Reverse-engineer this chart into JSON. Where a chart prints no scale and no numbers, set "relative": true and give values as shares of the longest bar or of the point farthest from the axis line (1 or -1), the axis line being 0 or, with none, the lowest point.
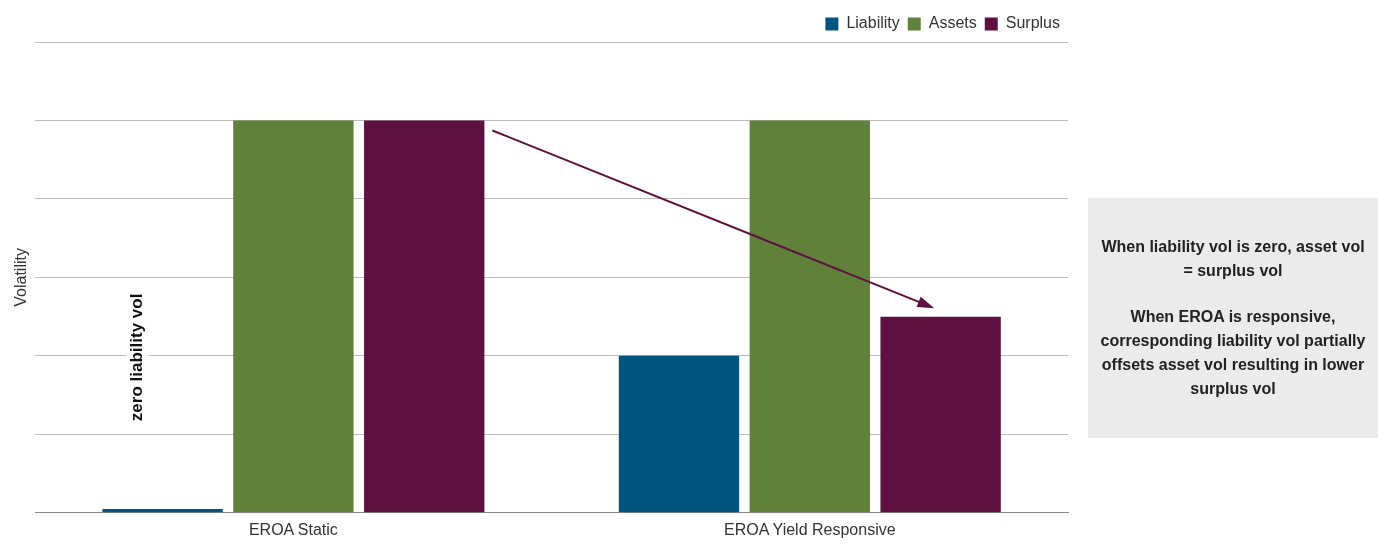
{
  "chart_data": {
    "type": "bar",
    "ylabel": "Volatility",
    "relative": true,
    "categories": [
      "EROA Static",
      "EROA Yield Responsive"
    ],
    "series": [
      {
        "name": "Liability",
        "color": "#00567f",
        "values": [
          0.01,
          0.4
        ]
      },
      {
        "name": "Assets",
        "color": "#5f813a",
        "values": [
          1,
          1
        ]
      },
      {
        "name": "Surplus",
        "color": "#5e1040",
        "values": [
          1,
          0.5
        ]
      }
    ],
    "annotations": [
      "zero liability vol",
      "When liability vol is zero, asset vol = surplus vol",
      "When EROA is responsive, corresponding liability vol partially offsets asset vol resulting in lower surplus vol"
    ],
    "grid": "y",
    "legend": "top right"
  }
}
